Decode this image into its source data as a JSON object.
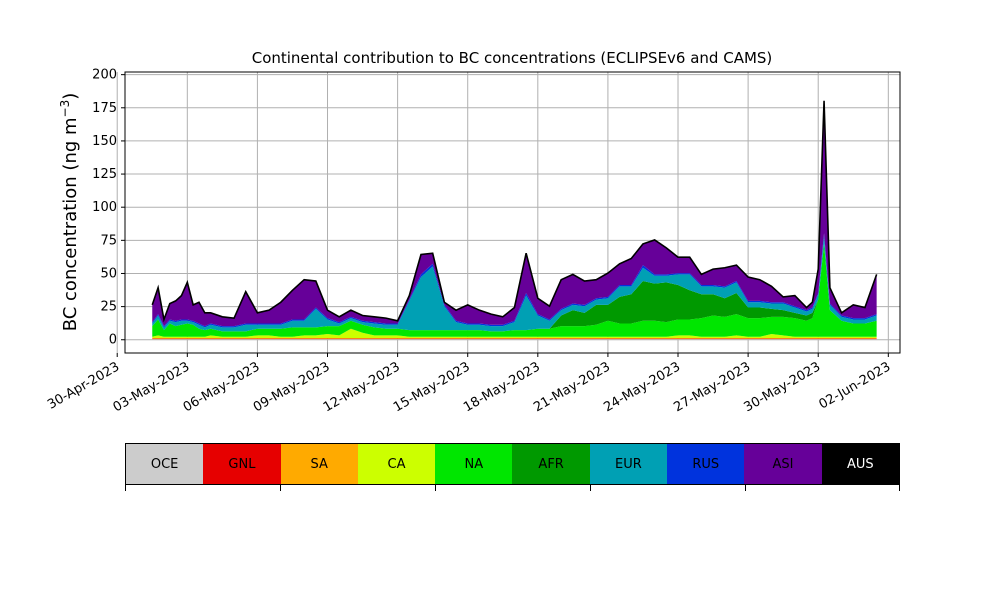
{
  "chart_data": {
    "type": "area",
    "stacked": true,
    "title": "Continental contribution to BC concentrations (ECLIPSEv6 and CAMS)",
    "ylabel": "BC concentration (ng m",
    "ylabel_superscript": "−3",
    "ylabel_suffix": ")",
    "ylim": [
      -10,
      202
    ],
    "yticks": [
      0,
      25,
      50,
      75,
      100,
      125,
      150,
      175,
      200
    ],
    "xlim": [
      "2023-04-30T08:00",
      "2023-06-02T12:00"
    ],
    "xticks": [
      {
        "date": "2023-04-30",
        "label": "30-Apr-2023"
      },
      {
        "date": "2023-05-03",
        "label": "03-May-2023"
      },
      {
        "date": "2023-05-06",
        "label": "06-May-2023"
      },
      {
        "date": "2023-05-09",
        "label": "09-May-2023"
      },
      {
        "date": "2023-05-12",
        "label": "12-May-2023"
      },
      {
        "date": "2023-05-15",
        "label": "15-May-2023"
      },
      {
        "date": "2023-05-18",
        "label": "18-May-2023"
      },
      {
        "date": "2023-05-21",
        "label": "21-May-2023"
      },
      {
        "date": "2023-05-24",
        "label": "24-May-2023"
      },
      {
        "date": "2023-05-27",
        "label": "27-May-2023"
      },
      {
        "date": "2023-05-30",
        "label": "30-May-2023"
      },
      {
        "date": "2023-06-02",
        "label": "02-Jun-2023"
      }
    ],
    "grid": true,
    "x": [
      "2023-05-01T12:00",
      "2023-05-01T18:00",
      "2023-05-02T00:00",
      "2023-05-02T06:00",
      "2023-05-02T12:00",
      "2023-05-02T18:00",
      "2023-05-03T00:00",
      "2023-05-03T06:00",
      "2023-05-03T12:00",
      "2023-05-03T18:00",
      "2023-05-04T00:00",
      "2023-05-04T12:00",
      "2023-05-05T00:00",
      "2023-05-05T12:00",
      "2023-05-06T00:00",
      "2023-05-06T12:00",
      "2023-05-07T00:00",
      "2023-05-07T12:00",
      "2023-05-08T00:00",
      "2023-05-08T12:00",
      "2023-05-09T00:00",
      "2023-05-09T12:00",
      "2023-05-10T00:00",
      "2023-05-10T12:00",
      "2023-05-11T00:00",
      "2023-05-11T12:00",
      "2023-05-12T00:00",
      "2023-05-12T12:00",
      "2023-05-13T00:00",
      "2023-05-13T12:00",
      "2023-05-14T00:00",
      "2023-05-14T12:00",
      "2023-05-15T00:00",
      "2023-05-15T12:00",
      "2023-05-16T00:00",
      "2023-05-16T12:00",
      "2023-05-17T00:00",
      "2023-05-17T12:00",
      "2023-05-18T00:00",
      "2023-05-18T12:00",
      "2023-05-19T00:00",
      "2023-05-19T12:00",
      "2023-05-20T00:00",
      "2023-05-20T12:00",
      "2023-05-21T00:00",
      "2023-05-21T12:00",
      "2023-05-22T00:00",
      "2023-05-22T12:00",
      "2023-05-23T00:00",
      "2023-05-23T12:00",
      "2023-05-24T00:00",
      "2023-05-24T12:00",
      "2023-05-25T00:00",
      "2023-05-25T12:00",
      "2023-05-26T00:00",
      "2023-05-26T12:00",
      "2023-05-27T00:00",
      "2023-05-27T12:00",
      "2023-05-28T00:00",
      "2023-05-28T12:00",
      "2023-05-29T00:00",
      "2023-05-29T12:00",
      "2023-05-29T18:00",
      "2023-05-30T00:00",
      "2023-05-30T06:00",
      "2023-05-30T12:00",
      "2023-05-31T00:00",
      "2023-05-31T12:00",
      "2023-06-01T00:00",
      "2023-06-01T12:00"
    ],
    "series": [
      {
        "name": "OCE",
        "color": "#cccccc",
        "values": [
          0.5,
          0.5,
          0.5,
          0.5,
          0.5,
          0.5,
          0.5,
          0.5,
          0.5,
          0.5,
          0.5,
          0.5,
          0.5,
          0.5,
          0.5,
          0.5,
          0.5,
          0.5,
          0.5,
          0.5,
          0.5,
          0.5,
          0.5,
          0.5,
          0.5,
          0.5,
          0.5,
          0.5,
          0.5,
          0.5,
          0.5,
          0.5,
          0.5,
          0.5,
          0.5,
          0.5,
          0.5,
          0.5,
          0.5,
          0.5,
          0.5,
          0.5,
          0.5,
          0.5,
          0.5,
          0.5,
          0.5,
          0.5,
          0.5,
          0.5,
          0.5,
          0.5,
          0.5,
          0.5,
          0.5,
          0.5,
          0.5,
          0.5,
          0.5,
          0.5,
          0.5,
          0.5,
          0.5,
          0.5,
          0.5,
          0.5,
          0.5,
          0.5,
          0.5,
          0.5
        ]
      },
      {
        "name": "GNL",
        "color": "#e60000",
        "values": [
          0.3,
          0.3,
          0.3,
          0.3,
          0.3,
          0.3,
          0.3,
          0.3,
          0.3,
          0.3,
          0.3,
          0.3,
          0.3,
          0.3,
          0.3,
          0.3,
          0.3,
          0.3,
          0.3,
          0.3,
          0.3,
          0.3,
          0.3,
          0.3,
          0.3,
          0.3,
          0.3,
          0.3,
          0.3,
          0.3,
          0.3,
          0.3,
          0.3,
          0.3,
          0.3,
          0.3,
          0.3,
          0.3,
          0.3,
          0.3,
          0.3,
          0.3,
          0.3,
          0.3,
          0.3,
          0.3,
          0.3,
          0.3,
          0.3,
          0.3,
          0.3,
          0.3,
          0.3,
          0.3,
          0.3,
          0.3,
          0.3,
          0.3,
          0.3,
          0.3,
          0.3,
          0.3,
          0.3,
          0.3,
          0.3,
          0.3,
          0.3,
          0.3,
          0.3,
          0.3
        ]
      },
      {
        "name": "SA",
        "color": "#ffaa00",
        "values": [
          0.5,
          0.5,
          0.5,
          0.5,
          0.5,
          0.5,
          0.5,
          0.5,
          0.5,
          0.5,
          0.5,
          0.5,
          0.5,
          0.5,
          0.5,
          0.5,
          0.5,
          0.5,
          0.5,
          0.5,
          0.5,
          0.5,
          0.5,
          0.5,
          0.5,
          0.5,
          0.5,
          0.5,
          0.5,
          0.5,
          0.5,
          0.5,
          0.5,
          0.5,
          0.5,
          0.5,
          0.5,
          0.5,
          0.5,
          0.5,
          0.5,
          0.5,
          0.5,
          0.5,
          0.5,
          0.5,
          0.5,
          0.5,
          0.5,
          0.5,
          0.5,
          0.5,
          0.5,
          0.5,
          0.5,
          0.5,
          0.5,
          0.5,
          0.5,
          0.5,
          0.5,
          0.5,
          0.5,
          0.5,
          0.5,
          0.5,
          0.5,
          0.5,
          0.5,
          0.5
        ]
      },
      {
        "name": "CA",
        "color": "#ccff00",
        "values": [
          1,
          2,
          1,
          1,
          1,
          1,
          1,
          1,
          1,
          1,
          2,
          1,
          1,
          1,
          2,
          2,
          1,
          1,
          2,
          2,
          3,
          2,
          7,
          4,
          2,
          2,
          2,
          1,
          1,
          1,
          1,
          1,
          1,
          1,
          1,
          1,
          1,
          1,
          1,
          1,
          1,
          1,
          1,
          1,
          1,
          1,
          1,
          1,
          1,
          1,
          2,
          2,
          1,
          1,
          1,
          2,
          1,
          1,
          3,
          2,
          1,
          1,
          1,
          1,
          1,
          1,
          1,
          1,
          1,
          1
        ]
      },
      {
        "name": "NA",
        "color": "#00e600",
        "values": [
          8,
          12,
          5,
          10,
          8,
          9,
          10,
          9,
          6,
          5,
          5,
          4,
          4,
          4,
          5,
          5,
          6,
          7,
          6,
          6,
          6,
          7,
          6,
          6,
          6,
          5,
          5,
          5,
          5,
          5,
          5,
          5,
          5,
          5,
          4,
          4,
          5,
          5,
          6,
          6,
          8,
          8,
          8,
          9,
          12,
          10,
          10,
          12,
          12,
          11,
          12,
          12,
          14,
          16,
          15,
          16,
          14,
          14,
          13,
          14,
          14,
          12,
          14,
          28,
          70,
          20,
          12,
          10,
          10,
          12
        ]
      },
      {
        "name": "AFR",
        "color": "#009900",
        "values": [
          0,
          0,
          0,
          0,
          0,
          0,
          0,
          0,
          0,
          0,
          0,
          0,
          0,
          0,
          0,
          0,
          0,
          0,
          0,
          0,
          0,
          0,
          0,
          0,
          0,
          0,
          0,
          0,
          0,
          0,
          0,
          0,
          0,
          0,
          0,
          0,
          0,
          0,
          0,
          0,
          8,
          12,
          10,
          15,
          12,
          20,
          22,
          30,
          28,
          30,
          26,
          22,
          18,
          16,
          14,
          16,
          8,
          8,
          6,
          5,
          4,
          4,
          4,
          0,
          0,
          0,
          0,
          0,
          0,
          0
        ]
      },
      {
        "name": "EUR",
        "color": "#00a0b4",
        "values": [
          2,
          3,
          2,
          2,
          3,
          3,
          2,
          2,
          3,
          2,
          3,
          3,
          3,
          5,
          3,
          3,
          3,
          5,
          5,
          14,
          5,
          2,
          2,
          2,
          3,
          3,
          3,
          22,
          40,
          48,
          18,
          6,
          4,
          4,
          4,
          4,
          6,
          26,
          10,
          6,
          4,
          4,
          5,
          4,
          5,
          8,
          6,
          10,
          6,
          5,
          8,
          12,
          6,
          6,
          8,
          8,
          4,
          4,
          4,
          5,
          4,
          3,
          3,
          4,
          6,
          4,
          3,
          3,
          3,
          4
        ]
      },
      {
        "name": "RUS",
        "color": "#0033dd",
        "values": [
          1,
          1,
          1,
          1,
          1,
          1,
          1,
          1,
          1,
          1,
          1,
          1,
          1,
          1,
          1,
          1,
          1,
          1,
          1,
          1,
          1,
          1,
          1,
          1,
          1,
          1,
          1,
          1,
          2,
          2,
          1,
          1,
          1,
          1,
          1,
          1,
          1,
          2,
          1,
          1,
          1,
          1,
          1,
          1,
          1,
          1,
          1,
          2,
          1,
          1,
          1,
          1,
          1,
          1,
          1,
          1,
          1,
          1,
          1,
          1,
          1,
          1,
          1,
          1,
          2,
          1,
          1,
          1,
          1,
          1
        ]
      },
      {
        "name": "ASI",
        "color": "#660099",
        "values": [
          13,
          20,
          5,
          12,
          15,
          18,
          28,
          12,
          16,
          10,
          8,
          7,
          6,
          24,
          8,
          10,
          16,
          22,
          30,
          20,
          6,
          4,
          5,
          4,
          4,
          4,
          2,
          3,
          15,
          8,
          2,
          8,
          14,
          10,
          8,
          6,
          10,
          30,
          12,
          10,
          22,
          22,
          18,
          14,
          18,
          16,
          20,
          16,
          26,
          20,
          12,
          12,
          8,
          12,
          14,
          12,
          18,
          16,
          12,
          4,
          8,
          2,
          4,
          18,
          100,
          12,
          2,
          10,
          8,
          30
        ]
      },
      {
        "name": "AUS",
        "color": "#000000",
        "values": [
          0,
          0,
          0,
          0,
          0,
          0,
          0,
          0,
          0,
          0,
          0,
          0,
          0,
          0,
          0,
          0,
          0,
          0,
          0,
          0,
          0,
          0,
          0,
          0,
          0,
          0,
          0,
          0,
          0,
          0,
          0,
          0,
          0,
          0,
          0,
          0,
          0,
          0,
          0,
          0,
          0,
          0,
          0,
          0,
          0,
          0,
          0,
          0,
          0,
          0,
          0,
          0,
          0,
          0,
          0,
          0,
          0,
          0,
          0,
          0,
          0,
          0,
          0,
          0,
          0,
          0,
          0,
          0,
          0,
          0
        ]
      }
    ],
    "legend_labels": [
      "OCE",
      "GNL",
      "SA",
      "CA",
      "NA",
      "AFR",
      "EUR",
      "RUS",
      "ASI",
      "AUS"
    ]
  }
}
